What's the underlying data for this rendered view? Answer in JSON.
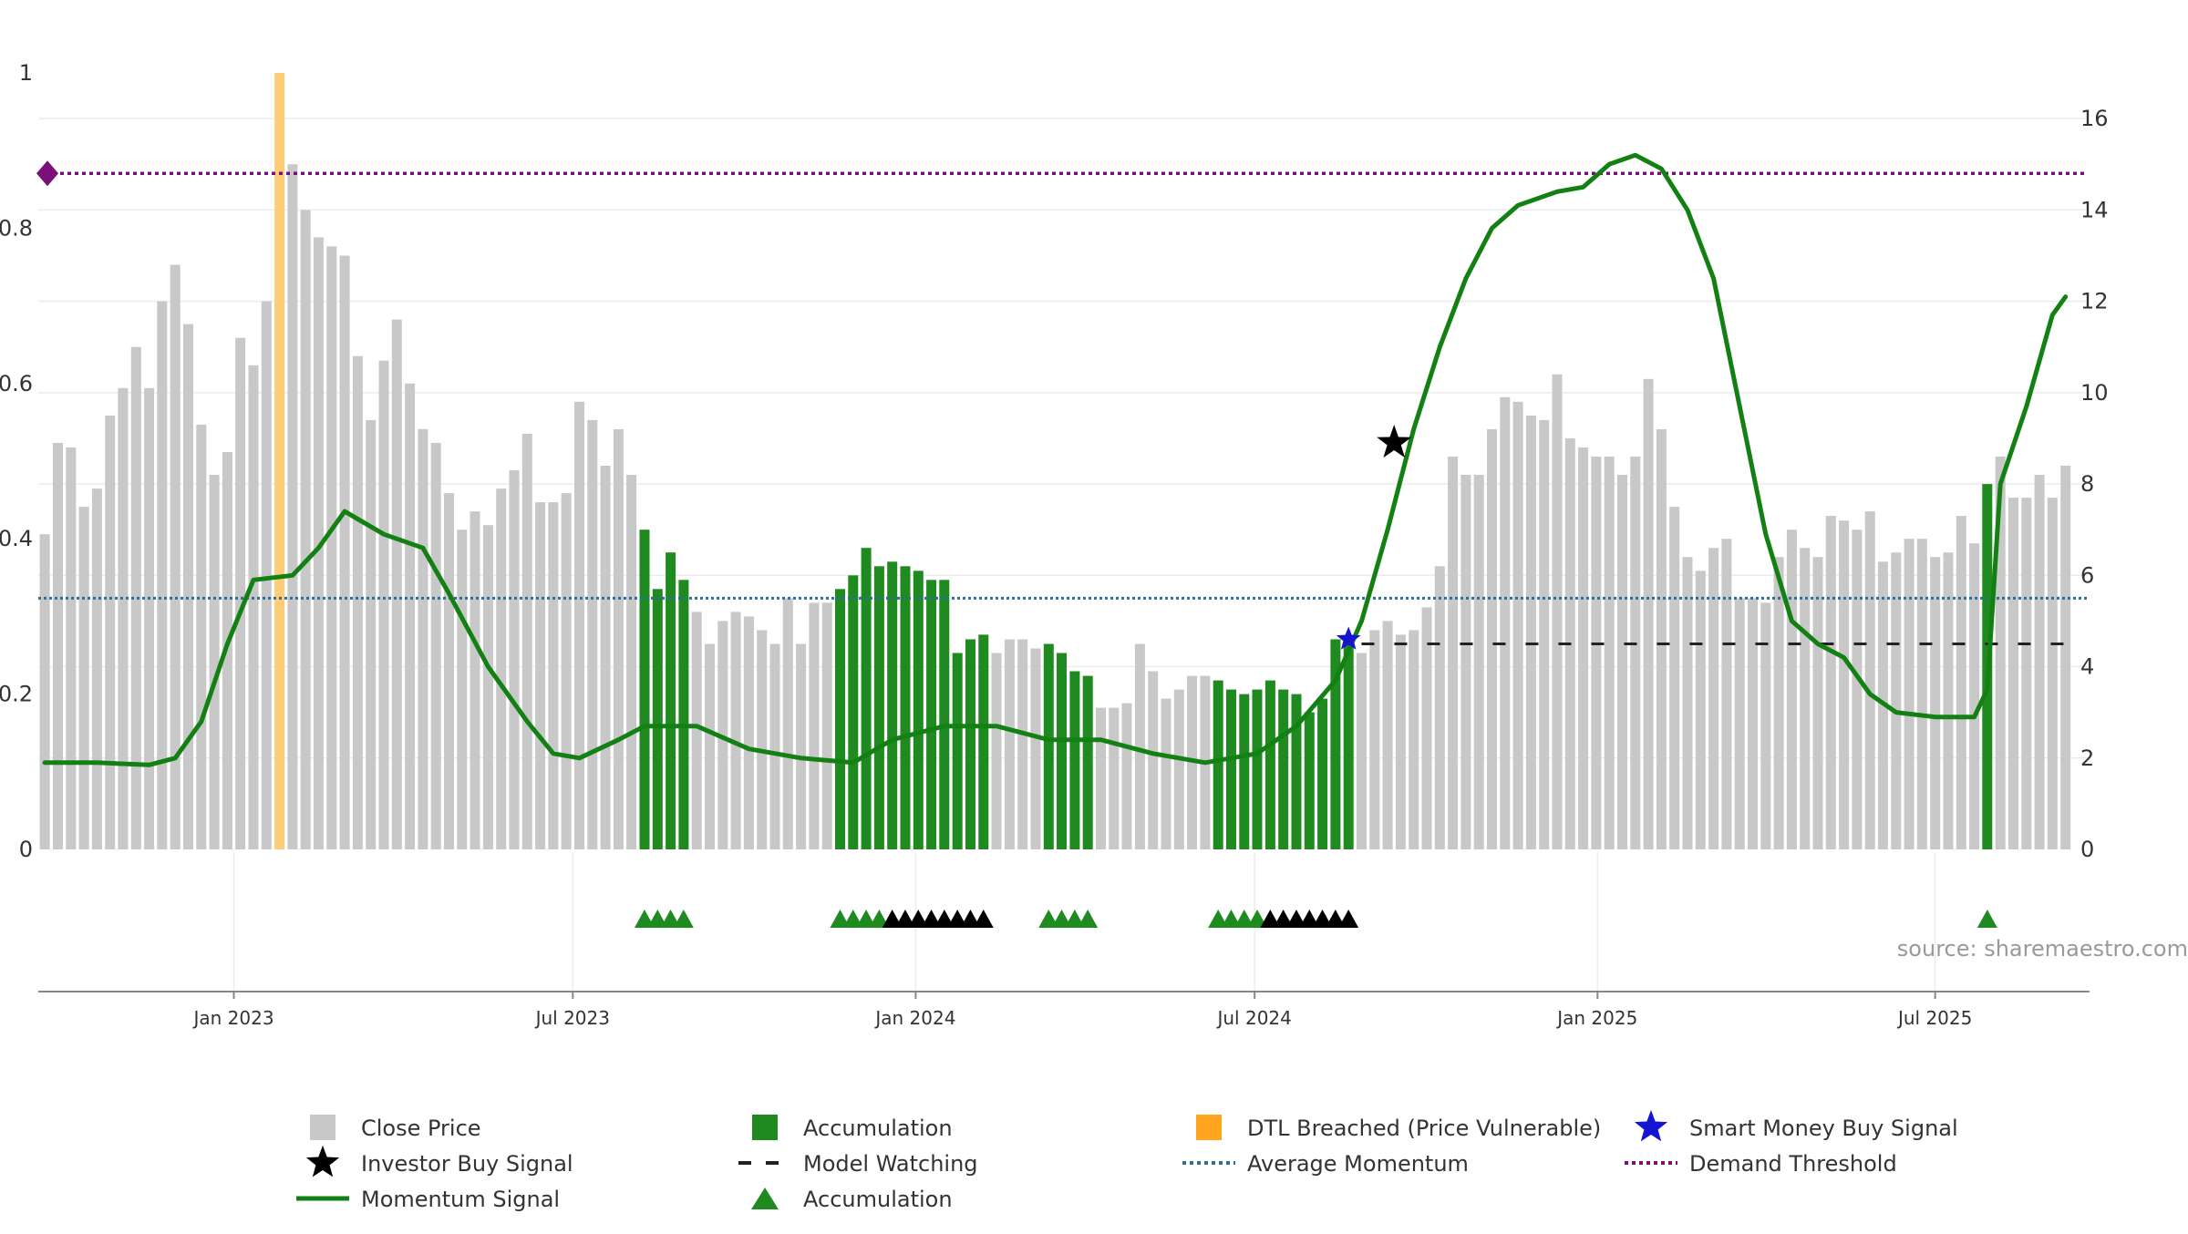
{
  "source_text": "source: sharemaestro.com",
  "colors": {
    "close": "#c8c8c8",
    "accumulation": "#1f8a1f",
    "dtl": "#ffcc77",
    "momentum": "#138013",
    "average": "#2a6f9a",
    "demand": "#7a0f7a",
    "watching": "#222222",
    "investor": "#000000",
    "smart": "#1414d2",
    "grid": "#ececec"
  },
  "chart_data": {
    "type": "bar",
    "title": "",
    "xlabel": "",
    "left_axis": {
      "ylim": [
        0,
        1
      ],
      "ticks": [
        0,
        0.2,
        0.4,
        0.6,
        0.8,
        1
      ],
      "tick_labels": [
        "0",
        "0.2",
        "0.4",
        "0.6",
        "0.8",
        "1"
      ]
    },
    "right_axis": {
      "ylim": [
        0,
        17
      ],
      "ticks": [
        0,
        2,
        4,
        6,
        8,
        10,
        12,
        14,
        16
      ],
      "tick_labels": [
        "0",
        "2",
        "4",
        "6",
        "8",
        "10",
        "12",
        "14",
        "16"
      ]
    },
    "x_ticks": [
      {
        "label": "Jan 2023",
        "week": 14.5
      },
      {
        "label": "Jul 2023",
        "week": 40.5
      },
      {
        "label": "Jan 2024",
        "week": 66.8
      },
      {
        "label": "Jul 2024",
        "week": 92.8
      },
      {
        "label": "Jan 2025",
        "week": 119.1
      },
      {
        "label": "Jul 2025",
        "week": 145
      }
    ],
    "grid": true,
    "legend_position": "bottom",
    "n_weeks": 157,
    "close_price": [
      6.9,
      8.9,
      8.8,
      7.5,
      7.9,
      9.5,
      10.1,
      11.0,
      10.1,
      12.0,
      12.8,
      11.5,
      9.3,
      8.2,
      8.7,
      11.2,
      10.6,
      12.0,
      17.0,
      15.0,
      14.0,
      13.4,
      13.2,
      13.0,
      10.8,
      9.4,
      10.7,
      11.6,
      10.2,
      9.2,
      8.9,
      7.8,
      7.0,
      7.4,
      7.1,
      7.9,
      8.3,
      9.1,
      7.6,
      7.6,
      7.8,
      9.8,
      9.4,
      8.4,
      9.2,
      8.2,
      7.0,
      5.7,
      6.5,
      5.9,
      5.2,
      4.5,
      5.0,
      5.2,
      5.1,
      4.8,
      4.5,
      5.5,
      4.5,
      5.4,
      5.4,
      5.7,
      6.0,
      6.6,
      6.2,
      6.3,
      6.2,
      6.1,
      5.9,
      5.9,
      4.3,
      4.6,
      4.7,
      4.3,
      4.6,
      4.6,
      4.4,
      4.5,
      4.3,
      3.9,
      3.8,
      3.1,
      3.1,
      3.2,
      4.5,
      3.9,
      3.3,
      3.5,
      3.8,
      3.8,
      3.7,
      3.5,
      3.4,
      3.5,
      3.7,
      3.5,
      3.4,
      3.0,
      3.3,
      4.6,
      4.6,
      4.3,
      4.8,
      5.0,
      4.7,
      4.8,
      5.3,
      6.2,
      8.6,
      8.2,
      8.2,
      9.2,
      9.9,
      9.8,
      9.5,
      9.4,
      10.4,
      9.0,
      8.8,
      8.6,
      8.6,
      8.2,
      8.6,
      10.3,
      9.2,
      7.5,
      6.4,
      6.1,
      6.6,
      6.8,
      5.5,
      5.5,
      5.4,
      6.4,
      7.0,
      6.6,
      6.4,
      7.3,
      7.2,
      7.0,
      7.4,
      6.3,
      6.5,
      6.8,
      6.8,
      6.4,
      6.5,
      7.3,
      6.7,
      8.0,
      8.6,
      7.7,
      7.7,
      8.2,
      7.7,
      8.4
    ],
    "accumulation_weeks": [
      46,
      47,
      48,
      49,
      61,
      62,
      63,
      64,
      65,
      66,
      67,
      68,
      69,
      70,
      71,
      72,
      77,
      78,
      79,
      80,
      90,
      91,
      92,
      93,
      94,
      95,
      96,
      97,
      98,
      99,
      100,
      149
    ],
    "dtl_breached_weeks": [
      18
    ],
    "momentum_signal": [
      [
        0,
        1.9
      ],
      [
        4,
        1.9
      ],
      [
        8,
        1.85
      ],
      [
        10,
        2.0
      ],
      [
        12,
        2.8
      ],
      [
        14,
        4.5
      ],
      [
        16,
        5.9
      ],
      [
        19,
        6.0
      ],
      [
        21,
        6.6
      ],
      [
        23,
        7.4
      ],
      [
        26,
        6.9
      ],
      [
        29,
        6.6
      ],
      [
        31,
        5.6
      ],
      [
        34,
        4.0
      ],
      [
        37,
        2.8
      ],
      [
        39,
        2.1
      ],
      [
        41,
        2.0
      ],
      [
        44,
        2.4
      ],
      [
        46,
        2.7
      ],
      [
        50,
        2.7
      ],
      [
        54,
        2.2
      ],
      [
        58,
        2.0
      ],
      [
        62,
        1.9
      ],
      [
        65,
        2.4
      ],
      [
        69,
        2.7
      ],
      [
        73,
        2.7
      ],
      [
        77,
        2.4
      ],
      [
        81,
        2.4
      ],
      [
        85,
        2.1
      ],
      [
        89,
        1.9
      ],
      [
        93,
        2.1
      ],
      [
        96,
        2.7
      ],
      [
        99,
        3.7
      ],
      [
        101,
        5.0
      ],
      [
        103,
        7.0
      ],
      [
        105,
        9.2
      ],
      [
        107,
        11.0
      ],
      [
        109,
        12.5
      ],
      [
        111,
        13.6
      ],
      [
        113,
        14.1
      ],
      [
        116,
        14.4
      ],
      [
        118,
        14.5
      ],
      [
        120,
        15.0
      ],
      [
        122,
        15.2
      ],
      [
        124,
        14.9
      ],
      [
        126,
        14.0
      ],
      [
        128,
        12.5
      ],
      [
        130,
        9.7
      ],
      [
        132,
        6.9
      ],
      [
        134,
        5.0
      ],
      [
        136,
        4.5
      ],
      [
        138,
        4.2
      ],
      [
        140,
        3.4
      ],
      [
        142,
        3.0
      ],
      [
        145,
        2.9
      ],
      [
        148,
        2.9
      ],
      [
        149,
        3.5
      ],
      [
        150,
        8.0
      ],
      [
        152,
        9.7
      ],
      [
        154,
        11.7
      ],
      [
        155,
        12.1
      ]
    ],
    "average_momentum": 5.5,
    "demand_threshold": 14.8,
    "model_watching": {
      "start_week": 101,
      "end_week": 156,
      "value": 4.5
    },
    "investor_buy_signals": [
      {
        "week": 103.5,
        "value": 8.9
      }
    ],
    "smart_money_buy_signals": [
      {
        "week": 100,
        "value": 4.6
      }
    ],
    "accumulation_markers": {
      "green": [
        46,
        47,
        48,
        49,
        61,
        62,
        63,
        64,
        77,
        78,
        79,
        80,
        90,
        91,
        92,
        93,
        149
      ],
      "black": [
        65,
        66,
        67,
        68,
        69,
        70,
        71,
        72,
        94,
        95,
        96,
        97,
        98,
        99,
        100
      ]
    },
    "legend": [
      {
        "label": "Close Price",
        "symbol": "square",
        "color": "#c8c8c8"
      },
      {
        "label": "Accumulation",
        "symbol": "square",
        "color": "#1f8a1f"
      },
      {
        "label": "DTL Breached (Price Vulnerable)",
        "symbol": "square",
        "color": "#ffa41c"
      },
      {
        "label": "Smart Money Buy Signal",
        "symbol": "star",
        "color": "#1414d2"
      },
      {
        "label": "Investor Buy Signal",
        "symbol": "star",
        "color": "#000000"
      },
      {
        "label": "Model Watching",
        "symbol": "dash",
        "color": "#222222"
      },
      {
        "label": "Average Momentum",
        "symbol": "dot",
        "color": "#2a6f9a"
      },
      {
        "label": "Demand Threshold",
        "symbol": "dot",
        "color": "#7a0f7a"
      },
      {
        "label": "Momentum Signal",
        "symbol": "line",
        "color": "#138013"
      },
      {
        "label": "Accumulation",
        "symbol": "triangle",
        "color": "#1f8a1f"
      }
    ]
  }
}
